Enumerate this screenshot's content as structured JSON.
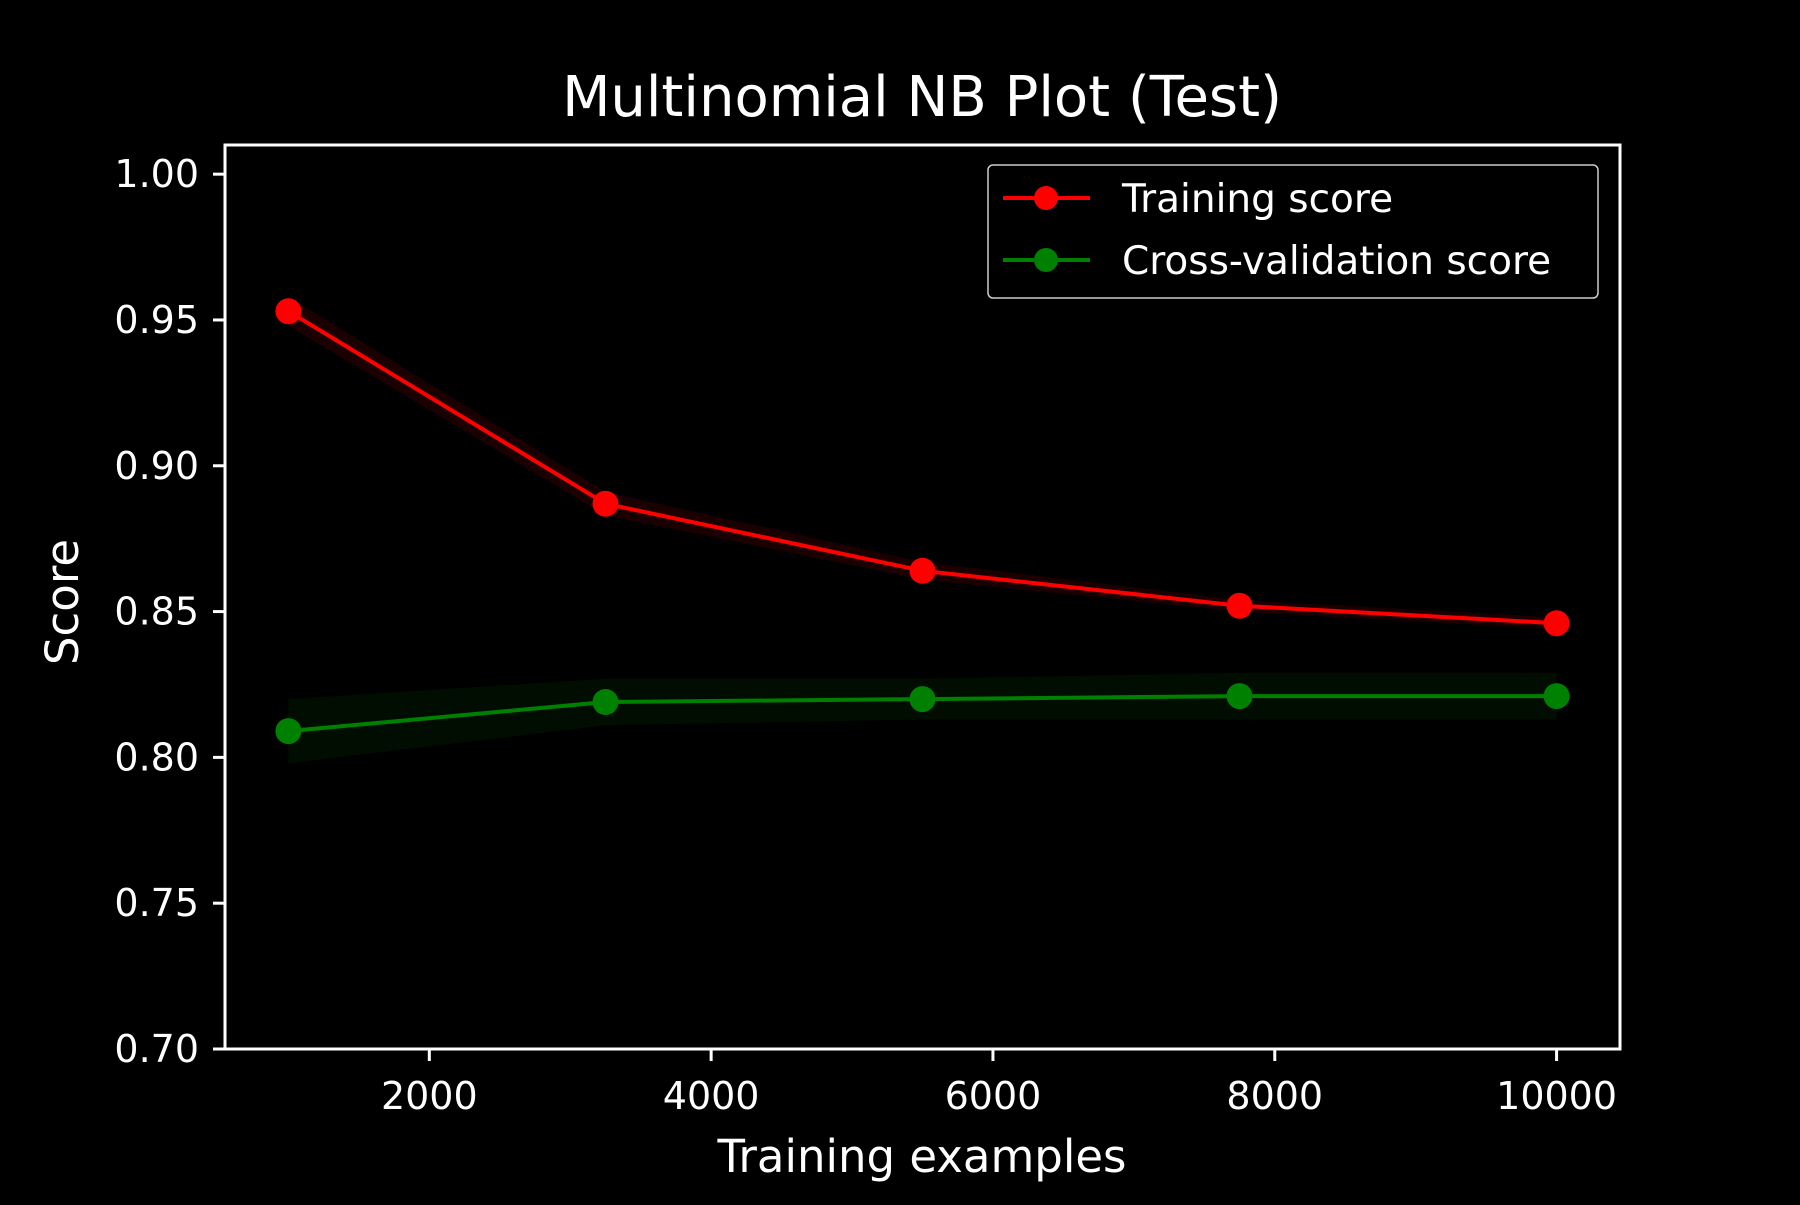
{
  "chart_data": {
    "type": "line",
    "title": "Multinomial NB Plot (Test)",
    "xlabel": "Training examples",
    "ylabel": "Score",
    "xlim": [
      550,
      10450
    ],
    "ylim": [
      0.7,
      1.01
    ],
    "x_ticks": [
      2000,
      4000,
      6000,
      8000,
      10000
    ],
    "x_tick_labels": [
      "2000",
      "4000",
      "6000",
      "8000",
      "10000"
    ],
    "y_ticks": [
      0.7,
      0.75,
      0.8,
      0.85,
      0.9,
      0.95,
      1.0
    ],
    "y_tick_labels": [
      "0.70",
      "0.75",
      "0.80",
      "0.85",
      "0.90",
      "0.95",
      "1.00"
    ],
    "grid": false,
    "legend_position": "top-right",
    "x": [
      1000,
      3250,
      5500,
      7750,
      10000
    ],
    "series": [
      {
        "name": "Training score",
        "color": "#ff0000",
        "values": [
          0.953,
          0.887,
          0.864,
          0.852,
          0.846
        ],
        "std": [
          0.005,
          0.004,
          0.003,
          0.002,
          0.002
        ]
      },
      {
        "name": "Cross-validation score",
        "color": "#008000",
        "values": [
          0.809,
          0.819,
          0.82,
          0.821,
          0.821
        ],
        "std": [
          0.011,
          0.008,
          0.007,
          0.008,
          0.008
        ]
      }
    ],
    "background": "#000000",
    "axis_color": "#ffffff",
    "legend_border_color": "#cccccc"
  }
}
